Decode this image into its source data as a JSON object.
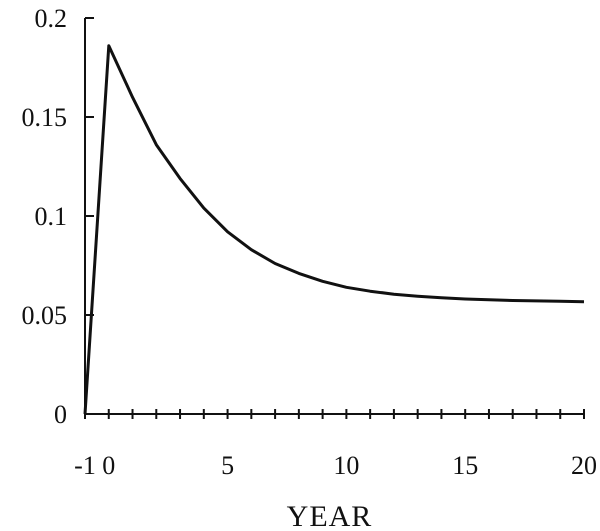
{
  "chart_data": {
    "type": "line",
    "title": "",
    "xlabel": "YEAR",
    "ylabel": "",
    "xlim": [
      -1,
      20
    ],
    "ylim": [
      0,
      0.2
    ],
    "x_ticks": [
      -1,
      0,
      5,
      10,
      15,
      20
    ],
    "x_tick_labels": [
      "-1",
      "0",
      "5",
      "10",
      "15",
      "20"
    ],
    "y_ticks": [
      0,
      0.05,
      0.1,
      0.15,
      0.2
    ],
    "y_tick_labels": [
      "0",
      "0.05",
      "0.1",
      "0.15",
      "0.2"
    ],
    "x_minor_tick_step": 1,
    "grid": false,
    "legend": "none",
    "line_color": "#111111",
    "series": [
      {
        "x": [
          -1,
          0,
          1,
          2,
          3,
          4,
          5,
          6,
          7,
          8,
          9,
          10,
          11,
          12,
          13,
          14,
          15,
          16,
          17,
          18,
          19,
          20
        ],
        "values": [
          0,
          0.186,
          0.16,
          0.136,
          0.119,
          0.104,
          0.092,
          0.083,
          0.076,
          0.071,
          0.067,
          0.064,
          0.062,
          0.0605,
          0.0595,
          0.0587,
          0.0581,
          0.0577,
          0.0573,
          0.0571,
          0.0569,
          0.0567
        ]
      }
    ]
  }
}
